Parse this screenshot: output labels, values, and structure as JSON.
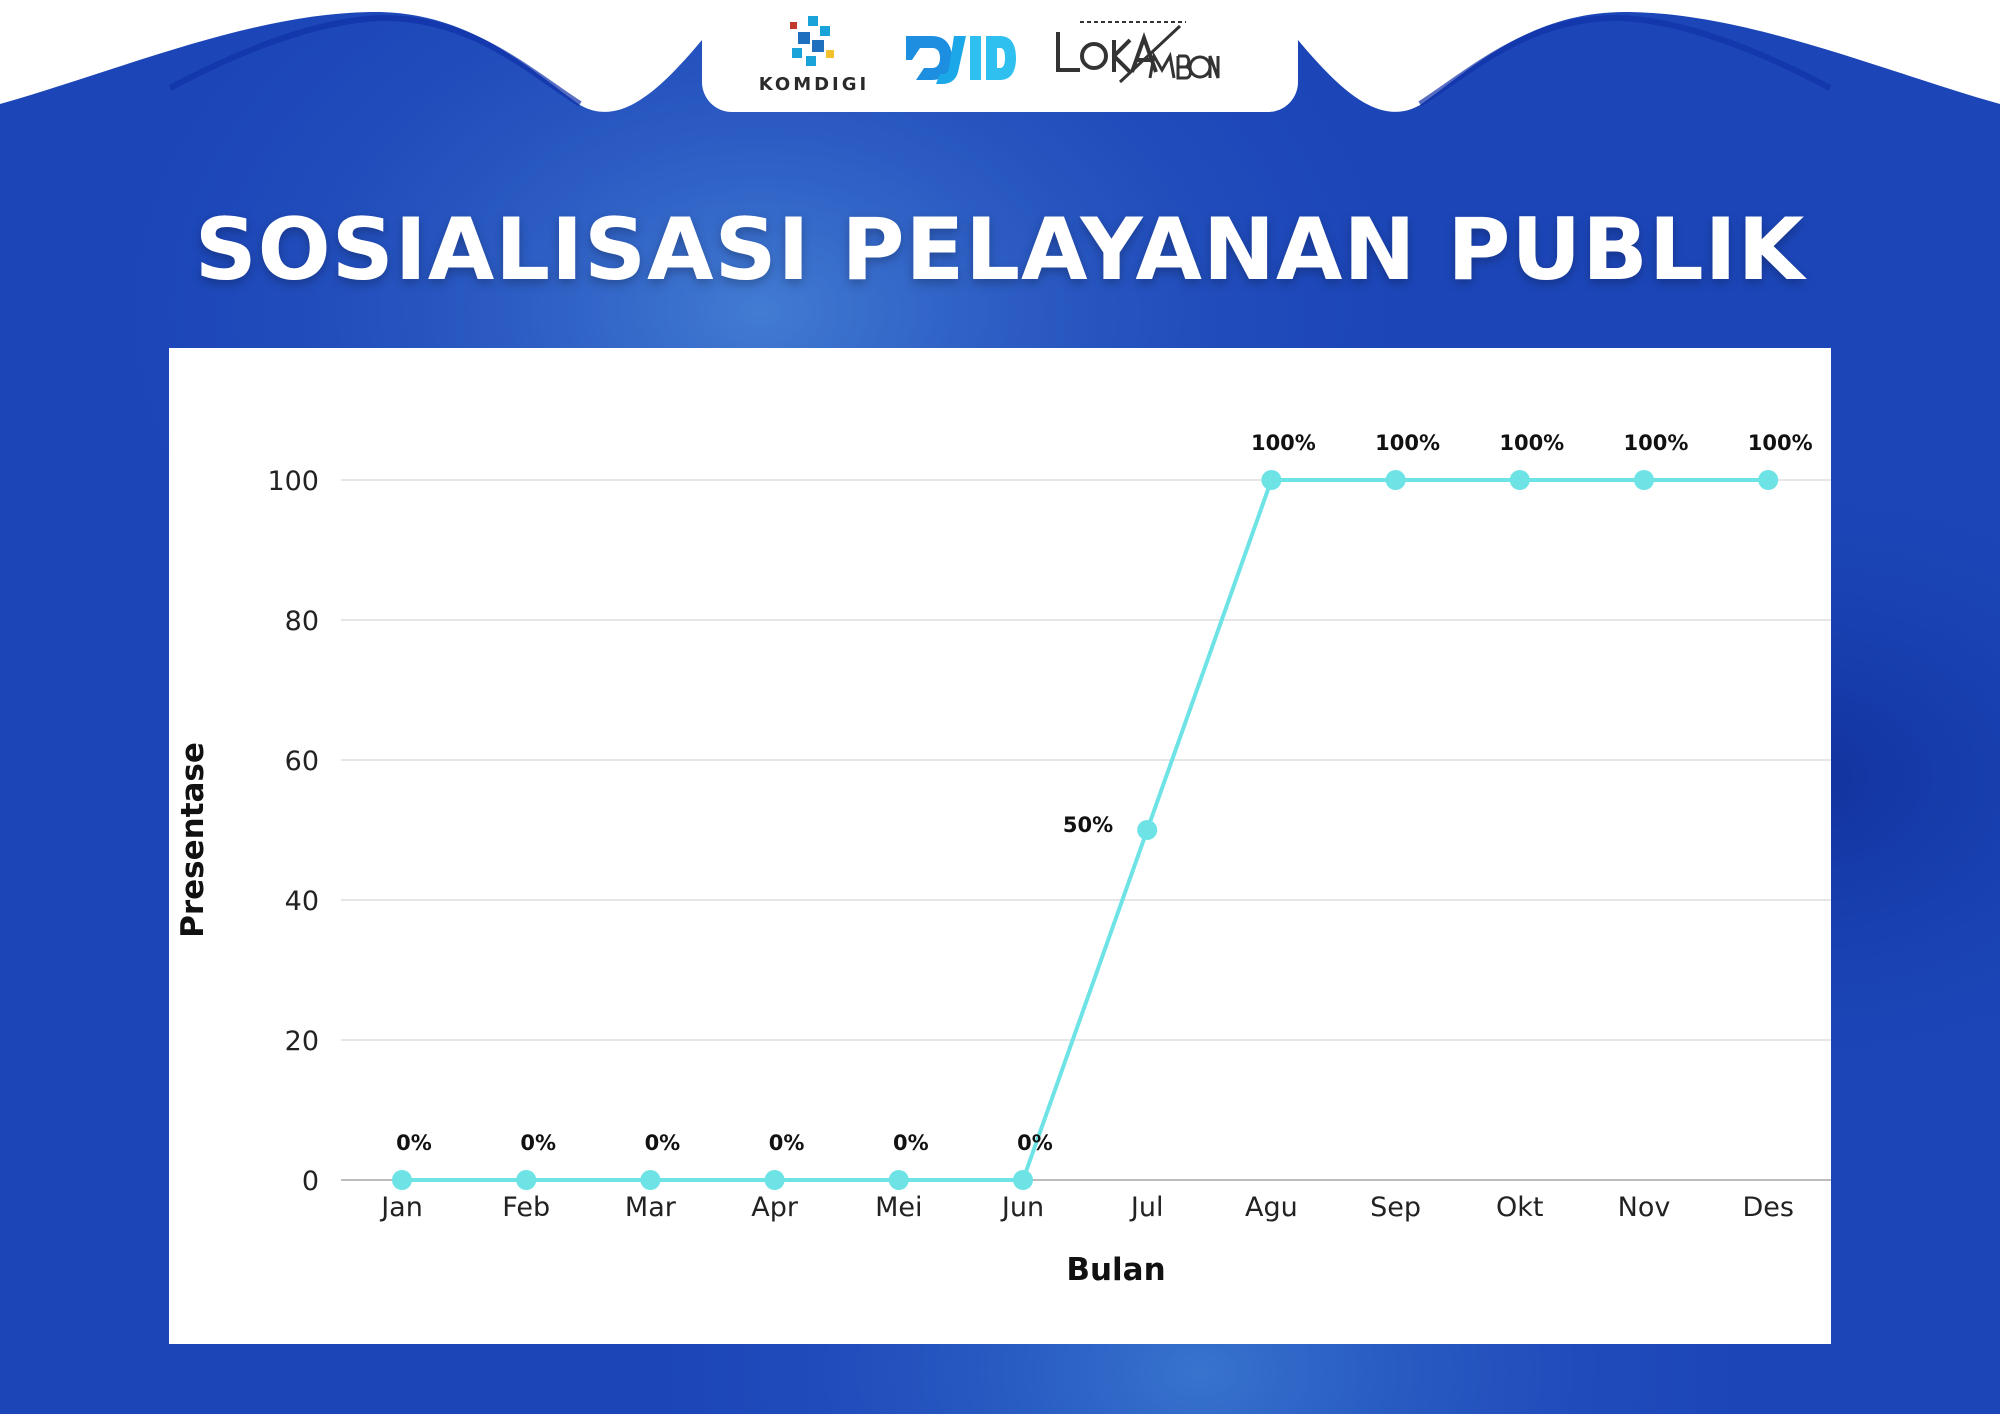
{
  "header": {
    "logos": [
      {
        "name": "komdigi",
        "text": "KOMDIGI"
      },
      {
        "name": "djid"
      },
      {
        "name": "lokambon",
        "text": "LOKAMBON"
      }
    ]
  },
  "title": "SOSIALISASI PELAYANAN PUBLIK",
  "colors": {
    "background": "#1c46b8",
    "panel": "#ffffff",
    "series_line": "#6ee3e6",
    "gridline": "#dedede",
    "baseline": "#bdbdbd"
  },
  "chart_data": {
    "type": "line",
    "categories": [
      "Jan",
      "Feb",
      "Mar",
      "Apr",
      "Mei",
      "Jun",
      "Jul",
      "Agu",
      "Sep",
      "Okt",
      "Nov",
      "Des"
    ],
    "values": [
      0,
      0,
      0,
      0,
      0,
      0,
      50,
      100,
      100,
      100,
      100,
      100
    ],
    "data_labels": [
      "0%",
      "0%",
      "0%",
      "0%",
      "0%",
      "0%",
      "50%",
      "100%",
      "100%",
      "100%",
      "100%",
      "100%"
    ],
    "xlabel": "Bulan",
    "ylabel": "Presentase",
    "ylim": [
      0,
      100
    ],
    "yticks": [
      0,
      20,
      40,
      60,
      80,
      100
    ],
    "grid": true,
    "legend": "none"
  }
}
